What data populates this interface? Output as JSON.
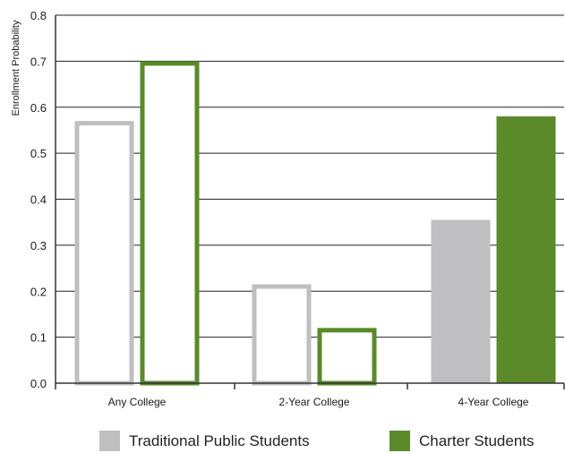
{
  "colors": {
    "traditional": "#bfbfc2",
    "charter": "#5a8a2a",
    "axis": "#333333",
    "grid": "#222222"
  },
  "chart_data": {
    "type": "bar",
    "ylabel": "Enrollment Probability",
    "ylim": [
      0,
      0.8
    ],
    "yticks": [
      "0.0",
      "0.1",
      "0.2",
      "0.3",
      "0.4",
      "0.5",
      "0.6",
      "0.7",
      "0.8"
    ],
    "categories": [
      "Any College",
      "2-Year College",
      "4-Year College"
    ],
    "series": [
      {
        "name": "Traditional Public Students",
        "values": [
          0.57,
          0.215,
          0.355
        ],
        "filled": [
          false,
          false,
          true
        ]
      },
      {
        "name": "Charter Students",
        "values": [
          0.7,
          0.12,
          0.58
        ],
        "filled": [
          false,
          false,
          true
        ]
      }
    ],
    "grid": true,
    "legend_position": "bottom"
  }
}
